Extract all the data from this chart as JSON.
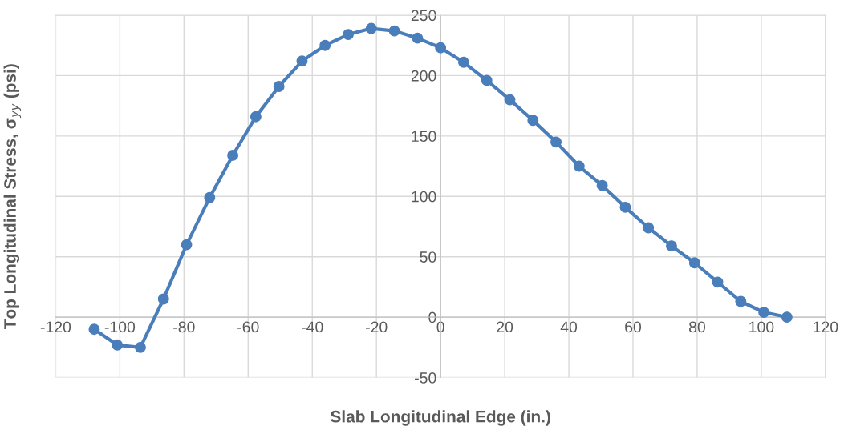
{
  "chart_data": {
    "type": "line",
    "xlabel": "Slab Longitudinal Edge (in.)",
    "ylabel": "Top Longitudinal Stress, σ$_{yy}$ (psi)",
    "x": [
      -108,
      -100.8,
      -93.6,
      -86.4,
      -79.2,
      -72,
      -64.8,
      -57.6,
      -50.4,
      -43.2,
      -36,
      -28.8,
      -21.6,
      -14.4,
      -7.2,
      0,
      7.2,
      14.4,
      21.6,
      28.8,
      36,
      43.2,
      50.4,
      57.6,
      64.8,
      72,
      79.2,
      86.4,
      93.6,
      100.8,
      108
    ],
    "series": [
      {
        "color": "#4a7ebb",
        "values": [
          -10,
          -23,
          -25,
          15,
          60,
          99,
          134,
          166,
          191,
          212,
          225,
          234,
          239,
          237,
          231,
          223,
          211,
          196,
          180,
          163,
          145,
          125,
          109,
          91,
          74,
          59,
          45,
          29,
          13,
          4,
          0
        ]
      }
    ],
    "xlim": [
      -120,
      120
    ],
    "xticks": [
      -120,
      -100,
      -80,
      -60,
      -40,
      -20,
      0,
      20,
      40,
      60,
      80,
      100,
      120
    ],
    "ylim": [
      -50,
      250
    ],
    "yticks": [
      -50,
      0,
      50,
      100,
      150,
      200,
      250
    ],
    "grid": true,
    "marker": "circle",
    "line_style": "solid",
    "legend": false
  }
}
